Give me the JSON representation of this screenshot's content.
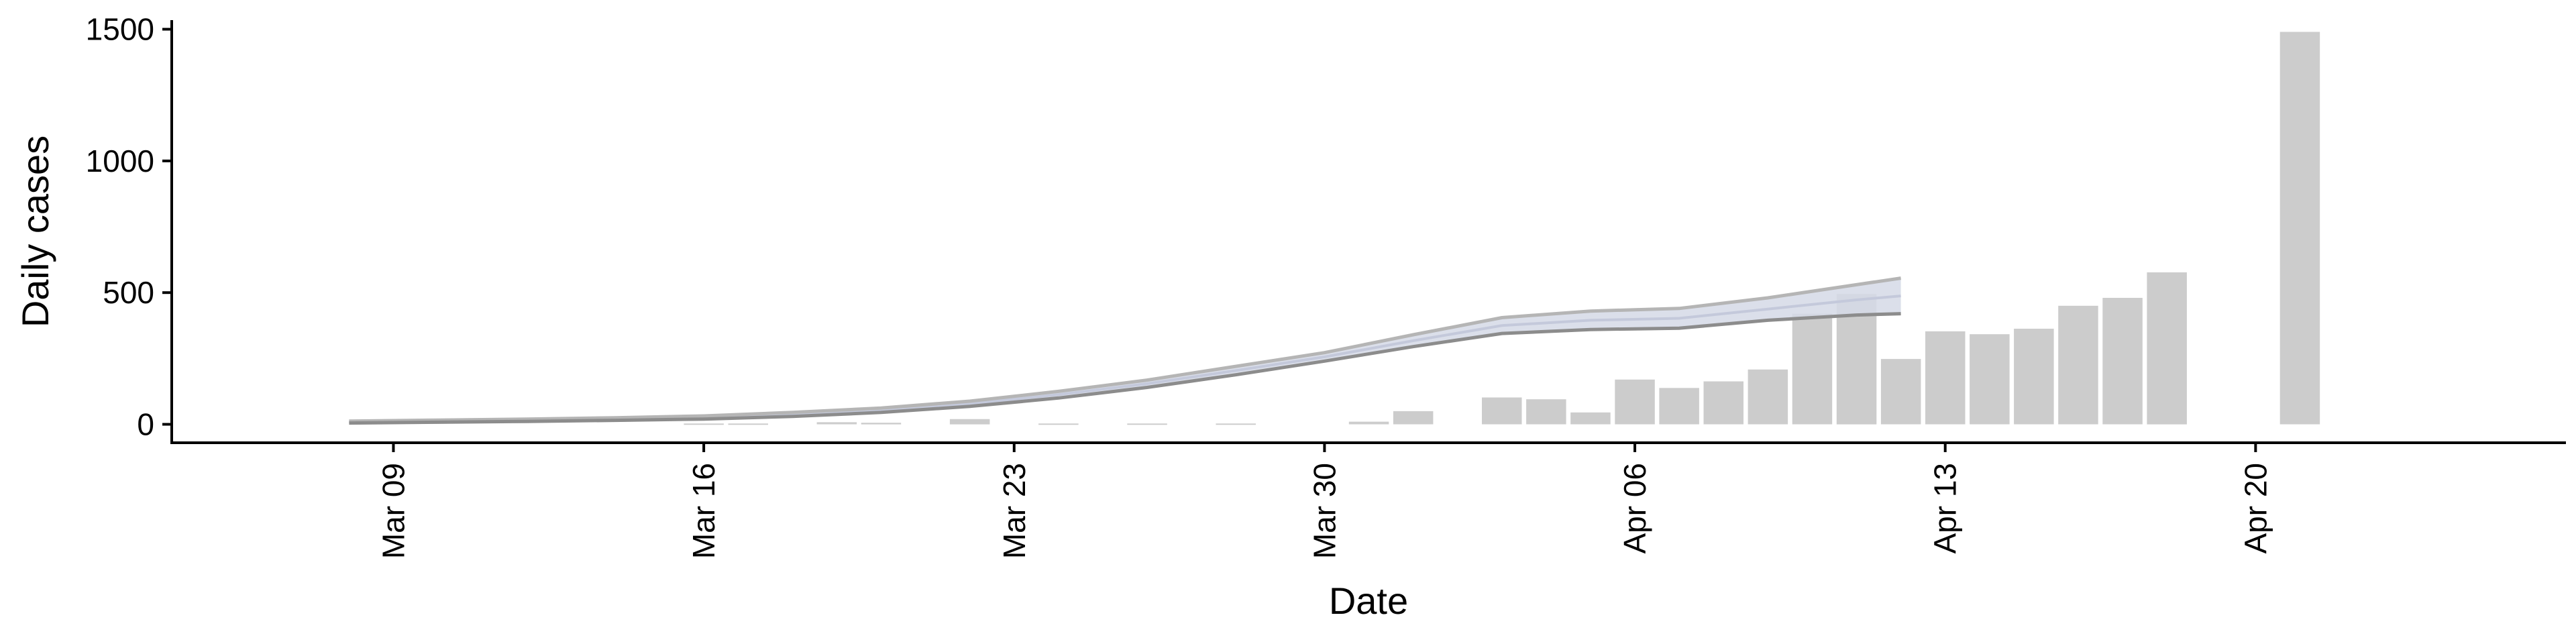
{
  "chart_data": {
    "type": "bar",
    "title": "",
    "xlabel": "Date",
    "ylabel": "Daily cases",
    "xlim": [
      "2020-03-04",
      "2020-04-27"
    ],
    "ylim": [
      -70,
      1560
    ],
    "y_ticks": [
      0,
      500,
      1000,
      1500
    ],
    "x_ticks": [
      {
        "date": "2020-03-09",
        "label": "Mar 09"
      },
      {
        "date": "2020-03-16",
        "label": "Mar 16"
      },
      {
        "date": "2020-03-23",
        "label": "Mar 23"
      },
      {
        "date": "2020-03-30",
        "label": "Mar 30"
      },
      {
        "date": "2020-04-06",
        "label": "Apr 06"
      },
      {
        "date": "2020-04-13",
        "label": "Apr 13"
      },
      {
        "date": "2020-04-20",
        "label": "Apr 20"
      }
    ],
    "colors": {
      "bars": "#cccccc",
      "band": "#d5d9e6",
      "upper_line": "#b5b5b5",
      "lower_line": "#8c8c8c"
    },
    "bars": [
      {
        "date": "2020-03-16",
        "value": 3
      },
      {
        "date": "2020-03-17",
        "value": 3
      },
      {
        "date": "2020-03-19",
        "value": 8
      },
      {
        "date": "2020-03-20",
        "value": 6
      },
      {
        "date": "2020-03-22",
        "value": 20
      },
      {
        "date": "2020-03-24",
        "value": 3
      },
      {
        "date": "2020-03-26",
        "value": 3
      },
      {
        "date": "2020-03-28",
        "value": 3
      },
      {
        "date": "2020-03-31",
        "value": 10
      },
      {
        "date": "2020-04-01",
        "value": 50
      },
      {
        "date": "2020-04-03",
        "value": 102
      },
      {
        "date": "2020-04-04",
        "value": 95
      },
      {
        "date": "2020-04-05",
        "value": 45
      },
      {
        "date": "2020-04-06",
        "value": 170
      },
      {
        "date": "2020-04-07",
        "value": 138
      },
      {
        "date": "2020-04-08",
        "value": 163
      },
      {
        "date": "2020-04-09",
        "value": 208
      },
      {
        "date": "2020-04-10",
        "value": 420
      },
      {
        "date": "2020-04-11",
        "value": 495
      },
      {
        "date": "2020-04-12",
        "value": 248
      },
      {
        "date": "2020-04-13",
        "value": 353
      },
      {
        "date": "2020-04-14",
        "value": 342
      },
      {
        "date": "2020-04-15",
        "value": 363
      },
      {
        "date": "2020-04-16",
        "value": 450
      },
      {
        "date": "2020-04-17",
        "value": 480
      },
      {
        "date": "2020-04-18",
        "value": 577
      },
      {
        "date": "2020-04-21",
        "value": 1490
      }
    ],
    "series": [
      {
        "x": [
          "2020-03-08",
          "2020-03-10",
          "2020-03-12",
          "2020-03-14",
          "2020-03-16",
          "2020-03-18",
          "2020-03-20",
          "2020-03-22",
          "2020-03-24",
          "2020-03-26",
          "2020-03-28",
          "2020-03-30",
          "2020-04-01",
          "2020-04-03",
          "2020-04-05",
          "2020-04-07",
          "2020-04-09",
          "2020-04-11",
          "2020-04-12"
        ],
        "upper": [
          12,
          16,
          20,
          25,
          32,
          45,
          62,
          88,
          125,
          168,
          220,
          272,
          340,
          405,
          430,
          440,
          480,
          530,
          555
        ],
        "lower": [
          5,
          8,
          11,
          15,
          20,
          30,
          45,
          68,
          100,
          140,
          188,
          240,
          295,
          345,
          360,
          365,
          395,
          415,
          420
        ]
      }
    ]
  }
}
